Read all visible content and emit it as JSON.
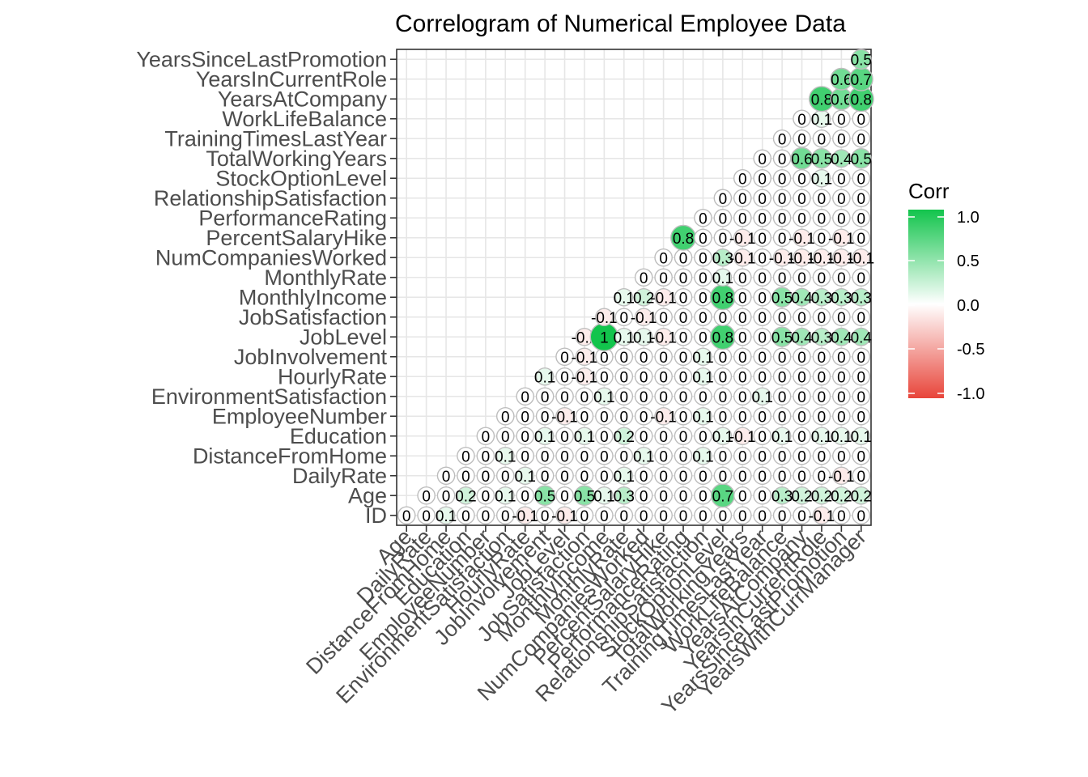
{
  "chart_data": {
    "type": "heatmap",
    "title": "Correlogram of Numerical Employee Data",
    "xlabel": "",
    "ylabel": "",
    "grid": true,
    "x_categories": [
      "Age",
      "DailyRate",
      "DistanceFromHome",
      "Education",
      "EmployeeNumber",
      "EnvironmentSatisfaction",
      "HourlyRate",
      "JobInvolvement",
      "JobLevel",
      "JobSatisfaction",
      "MonthlyIncome",
      "MonthlyRate",
      "NumCompaniesWorked",
      "PercentSalaryHike",
      "PerformanceRating",
      "RelationshipSatisfaction",
      "StockOptionLevel",
      "TotalWorkingYears",
      "TrainingTimesLastYear",
      "WorkLifeBalance",
      "YearsAtCompany",
      "YearsInCurrentRole",
      "YearsSinceLastPromotion",
      "YearsWithCurrManager"
    ],
    "y_categories": [
      "ID",
      "Age",
      "DailyRate",
      "DistanceFromHome",
      "Education",
      "EmployeeNumber",
      "EnvironmentSatisfaction",
      "HourlyRate",
      "JobInvolvement",
      "JobLevel",
      "JobSatisfaction",
      "MonthlyIncome",
      "MonthlyRate",
      "NumCompaniesWorked",
      "PercentSalaryHike",
      "PerformanceRating",
      "RelationshipSatisfaction",
      "StockOptionLevel",
      "TotalWorkingYears",
      "TrainingTimesLastYear",
      "WorkLifeBalance",
      "YearsAtCompany",
      "YearsInCurrentRole",
      "YearsSinceLastPromotion"
    ],
    "values": [
      [
        0,
        0,
        0.1,
        0,
        0,
        0,
        -0.1,
        0,
        -0.1,
        0,
        0,
        0,
        0,
        0,
        0,
        0,
        0,
        0,
        0,
        0,
        0,
        -0.1,
        0,
        0
      ],
      [
        null,
        0,
        0,
        0.2,
        0,
        0.1,
        0,
        0.5,
        0,
        0.5,
        0.1,
        0.3,
        0,
        0,
        0,
        0,
        0.7,
        0,
        0,
        0.3,
        0.2,
        0.2,
        0.2,
        0.2
      ],
      [
        null,
        null,
        0,
        0,
        0,
        0,
        0.1,
        0,
        0,
        0,
        0,
        0.1,
        0,
        0,
        0,
        0,
        0,
        0,
        0,
        0,
        0,
        0,
        -0.1,
        0
      ],
      [
        null,
        null,
        null,
        0,
        0,
        0.1,
        0,
        0,
        0,
        0,
        0,
        0,
        0.1,
        0,
        0,
        0.1,
        0,
        0,
        0,
        0,
        0,
        0,
        0,
        0
      ],
      [
        null,
        null,
        null,
        null,
        0,
        0,
        0,
        0.1,
        0,
        0.1,
        0,
        0.2,
        0,
        0,
        0,
        0,
        0.1,
        -0.1,
        0,
        0.1,
        0,
        0.1,
        0.1,
        0.1
      ],
      [
        null,
        null,
        null,
        null,
        null,
        0,
        0,
        0,
        -0.1,
        0,
        0,
        0,
        0,
        -0.1,
        0,
        0.1,
        0,
        0,
        0,
        0,
        0,
        0,
        0,
        0
      ],
      [
        null,
        null,
        null,
        null,
        null,
        null,
        0,
        0,
        0,
        0,
        0.1,
        0,
        0,
        0,
        0,
        0,
        0,
        0,
        0.1,
        0,
        0,
        0,
        0,
        0
      ],
      [
        null,
        null,
        null,
        null,
        null,
        null,
        null,
        0.1,
        0,
        -0.1,
        0,
        0,
        0,
        0,
        0,
        0.1,
        0,
        0,
        0,
        0,
        0,
        0,
        0,
        0
      ],
      [
        null,
        null,
        null,
        null,
        null,
        null,
        null,
        null,
        0,
        -0.1,
        0,
        0,
        0,
        0,
        0,
        0.1,
        0,
        0,
        0,
        0,
        0,
        0,
        0,
        0
      ],
      [
        null,
        null,
        null,
        null,
        null,
        null,
        null,
        null,
        null,
        -0.1,
        1,
        0.1,
        0.1,
        -0.1,
        0,
        0,
        0.8,
        0,
        0,
        0.5,
        0.4,
        0.3,
        0.4,
        0.4
      ],
      [
        null,
        null,
        null,
        null,
        null,
        null,
        null,
        null,
        null,
        null,
        -0.1,
        0,
        -0.1,
        0,
        0,
        0,
        0,
        0,
        0,
        0,
        0,
        0,
        0,
        0
      ],
      [
        null,
        null,
        null,
        null,
        null,
        null,
        null,
        null,
        null,
        null,
        null,
        0.1,
        0.2,
        -0.1,
        0,
        0,
        0.8,
        0,
        0,
        0.5,
        0.4,
        0.3,
        0.3,
        0.3
      ],
      [
        null,
        null,
        null,
        null,
        null,
        null,
        null,
        null,
        null,
        null,
        null,
        null,
        0,
        0,
        0,
        0,
        0.1,
        0,
        0,
        0,
        0,
        0,
        0,
        0
      ],
      [
        null,
        null,
        null,
        null,
        null,
        null,
        null,
        null,
        null,
        null,
        null,
        null,
        null,
        0,
        0,
        0,
        0.3,
        -0.1,
        0,
        -0.1,
        -0.1,
        -0.1,
        -0.1,
        -0.1
      ],
      [
        null,
        null,
        null,
        null,
        null,
        null,
        null,
        null,
        null,
        null,
        null,
        null,
        null,
        null,
        0.8,
        0,
        0,
        -0.1,
        0,
        0,
        -0.1,
        0,
        -0.1,
        0
      ],
      [
        null,
        null,
        null,
        null,
        null,
        null,
        null,
        null,
        null,
        null,
        null,
        null,
        null,
        null,
        null,
        0,
        0,
        0,
        0,
        0,
        0,
        0,
        0,
        0
      ],
      [
        null,
        null,
        null,
        null,
        null,
        null,
        null,
        null,
        null,
        null,
        null,
        null,
        null,
        null,
        null,
        null,
        0,
        0,
        0,
        0,
        0,
        0,
        0,
        0
      ],
      [
        null,
        null,
        null,
        null,
        null,
        null,
        null,
        null,
        null,
        null,
        null,
        null,
        null,
        null,
        null,
        null,
        null,
        0,
        0,
        0,
        0,
        0.1,
        0,
        0
      ],
      [
        null,
        null,
        null,
        null,
        null,
        null,
        null,
        null,
        null,
        null,
        null,
        null,
        null,
        null,
        null,
        null,
        null,
        null,
        0,
        0,
        0.6,
        0.5,
        0.4,
        0.5
      ],
      [
        null,
        null,
        null,
        null,
        null,
        null,
        null,
        null,
        null,
        null,
        null,
        null,
        null,
        null,
        null,
        null,
        null,
        null,
        null,
        0,
        0,
        0,
        0,
        0
      ],
      [
        null,
        null,
        null,
        null,
        null,
        null,
        null,
        null,
        null,
        null,
        null,
        null,
        null,
        null,
        null,
        null,
        null,
        null,
        null,
        null,
        0,
        0.1,
        0,
        0
      ],
      [
        null,
        null,
        null,
        null,
        null,
        null,
        null,
        null,
        null,
        null,
        null,
        null,
        null,
        null,
        null,
        null,
        null,
        null,
        null,
        null,
        null,
        0.8,
        0.6,
        0.8
      ],
      [
        null,
        null,
        null,
        null,
        null,
        null,
        null,
        null,
        null,
        null,
        null,
        null,
        null,
        null,
        null,
        null,
        null,
        null,
        null,
        null,
        null,
        null,
        0.6,
        0.7
      ],
      [
        null,
        null,
        null,
        null,
        null,
        null,
        null,
        null,
        null,
        null,
        null,
        null,
        null,
        null,
        null,
        null,
        null,
        null,
        null,
        null,
        null,
        null,
        null,
        0.5
      ]
    ],
    "value_range": [
      -1,
      1
    ],
    "colors": {
      "low": "#e8453a",
      "mid": "#ffffff",
      "high": "#12c44c"
    },
    "legend": {
      "title": "Corr",
      "placement": "right",
      "ticks": [
        1.0,
        0.5,
        0.0,
        -0.5,
        -1.0
      ],
      "tick_labels": [
        "1.0",
        "0.5",
        "0.0",
        "-0.5",
        "-1.0"
      ]
    }
  }
}
